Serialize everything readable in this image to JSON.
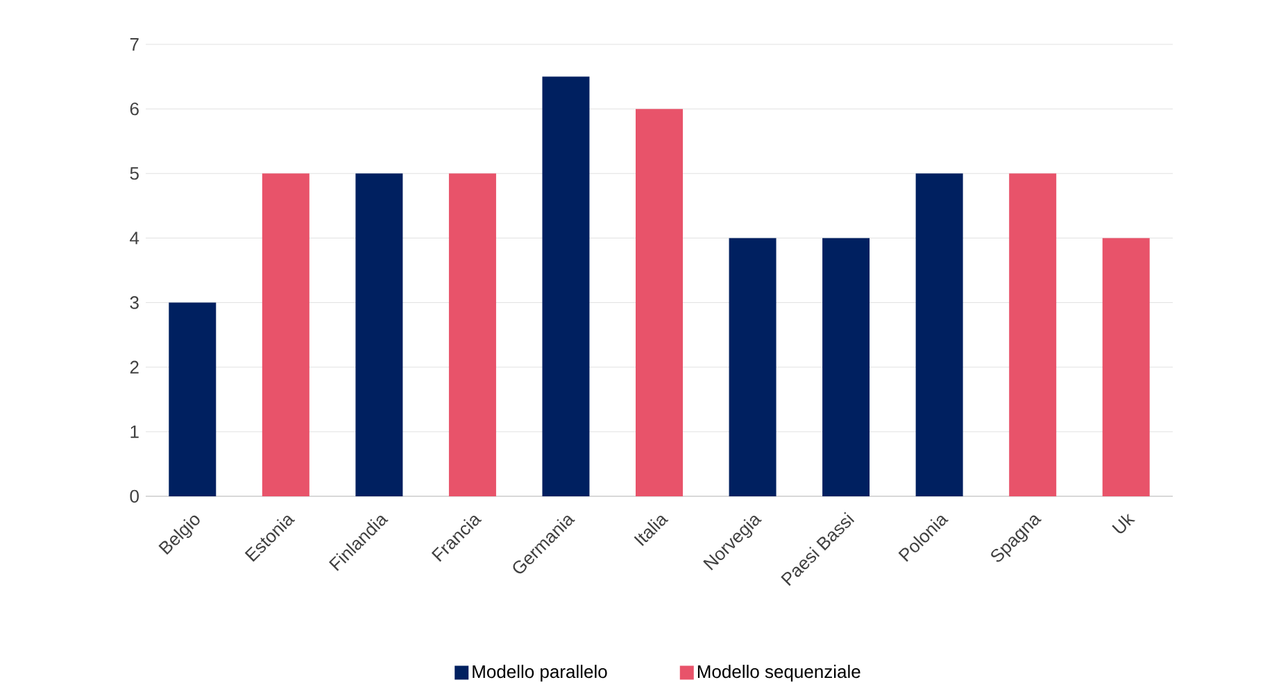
{
  "chart_data": {
    "type": "bar",
    "categories": [
      "Belgio",
      "Estonia",
      "Finlandia",
      "Francia",
      "Germania",
      "Italia",
      "Norvegia",
      "Paesi Bassi",
      "Polonia",
      "Spagna",
      "Uk"
    ],
    "series": [
      {
        "name": "Modello parallelo",
        "color": "#002060",
        "values": [
          3,
          null,
          5,
          null,
          6.5,
          null,
          4,
          4,
          5,
          null,
          null
        ]
      },
      {
        "name": "Modello sequenziale",
        "color": "#e8536a",
        "values": [
          null,
          5,
          null,
          5,
          null,
          6,
          null,
          null,
          null,
          5,
          4
        ]
      }
    ],
    "ylim": [
      0,
      7
    ],
    "yticks": [
      0,
      1,
      2,
      3,
      4,
      5,
      6,
      7
    ],
    "grid": "y",
    "legend": "bottom"
  }
}
